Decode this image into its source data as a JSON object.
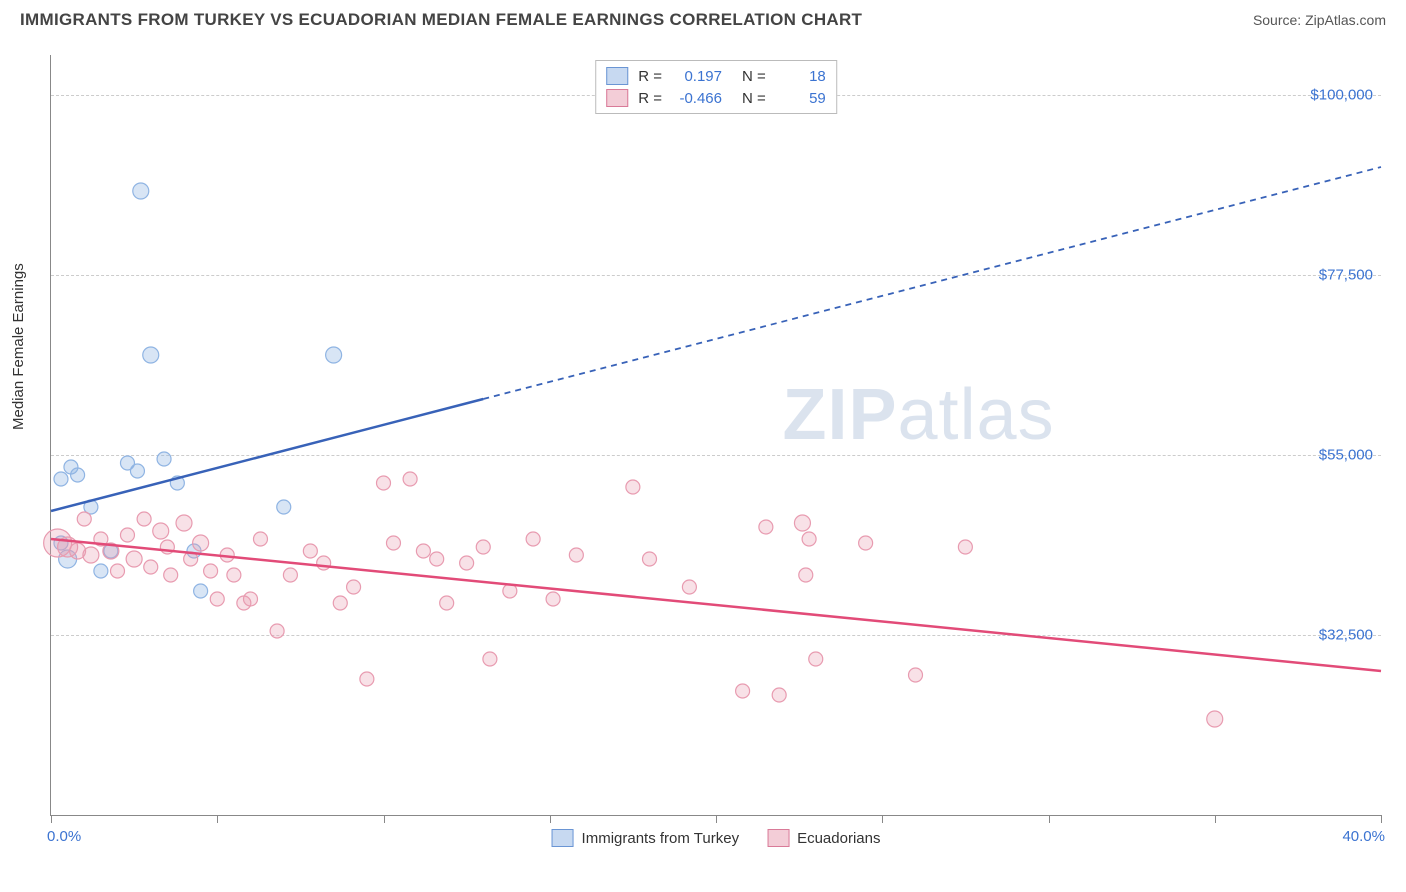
{
  "header": {
    "title": "IMMIGRANTS FROM TURKEY VS ECUADORIAN MEDIAN FEMALE EARNINGS CORRELATION CHART",
    "source_prefix": "Source: ",
    "source_name": "ZipAtlas.com"
  },
  "watermark": {
    "zip": "ZIP",
    "atlas": "atlas"
  },
  "chart": {
    "type": "scatter",
    "ylabel": "Median Female Earnings",
    "xlim": [
      0,
      40
    ],
    "ylim": [
      10000,
      105000
    ],
    "x_ticks_pct": [
      0,
      5,
      10,
      15,
      20,
      25,
      30,
      35,
      40
    ],
    "x_tick_labels": {
      "first": "0.0%",
      "last": "40.0%"
    },
    "y_gridlines": [
      32500,
      55000,
      77500,
      100000
    ],
    "y_tick_labels": [
      "$32,500",
      "$55,000",
      "$77,500",
      "$100,000"
    ],
    "grid_color": "#cccccc",
    "background_color": "#ffffff",
    "axis_color": "#888888",
    "label_fontsize": 15,
    "title_fontsize": 17,
    "tick_label_color": "#3b73d1",
    "series": [
      {
        "name": "Immigrants from Turkey",
        "marker_color": "#8fb4e3",
        "marker_fill": "rgba(143,180,227,0.35)",
        "line_color": "#3862b8",
        "line_width": 2.5,
        "r_value": "0.197",
        "n_value": "18",
        "trend_solid": {
          "x1": 0,
          "y1": 48000,
          "x2": 13,
          "y2": 62000
        },
        "trend_dashed": {
          "x1": 13,
          "y1": 62000,
          "x2": 40,
          "y2": 91000
        },
        "points": [
          {
            "x": 0.3,
            "y": 52000,
            "r": 7
          },
          {
            "x": 0.6,
            "y": 53500,
            "r": 7
          },
          {
            "x": 0.8,
            "y": 52500,
            "r": 7
          },
          {
            "x": 0.3,
            "y": 44000,
            "r": 7
          },
          {
            "x": 0.5,
            "y": 42000,
            "r": 9
          },
          {
            "x": 1.2,
            "y": 48500,
            "r": 7
          },
          {
            "x": 1.8,
            "y": 43000,
            "r": 7
          },
          {
            "x": 1.5,
            "y": 40500,
            "r": 7
          },
          {
            "x": 2.3,
            "y": 54000,
            "r": 7
          },
          {
            "x": 2.6,
            "y": 53000,
            "r": 7
          },
          {
            "x": 3.4,
            "y": 54500,
            "r": 7
          },
          {
            "x": 3.0,
            "y": 67500,
            "r": 8
          },
          {
            "x": 3.8,
            "y": 51500,
            "r": 7
          },
          {
            "x": 4.5,
            "y": 38000,
            "r": 7
          },
          {
            "x": 4.3,
            "y": 43000,
            "r": 7
          },
          {
            "x": 7.0,
            "y": 48500,
            "r": 7
          },
          {
            "x": 8.5,
            "y": 67500,
            "r": 8
          },
          {
            "x": 2.7,
            "y": 88000,
            "r": 8
          }
        ]
      },
      {
        "name": "Ecuadorians",
        "marker_color": "#e89bb0",
        "marker_fill": "rgba(232,155,176,0.30)",
        "line_color": "#e24b78",
        "line_width": 2.5,
        "r_value": "-0.466",
        "n_value": "59",
        "trend_solid": {
          "x1": 0,
          "y1": 44500,
          "x2": 40,
          "y2": 28000
        },
        "trend_dashed": null,
        "points": [
          {
            "x": 0.2,
            "y": 44000,
            "r": 14
          },
          {
            "x": 0.5,
            "y": 43500,
            "r": 10
          },
          {
            "x": 0.8,
            "y": 43000,
            "r": 8
          },
          {
            "x": 1.0,
            "y": 47000,
            "r": 7
          },
          {
            "x": 1.2,
            "y": 42500,
            "r": 8
          },
          {
            "x": 1.5,
            "y": 44500,
            "r": 7
          },
          {
            "x": 1.8,
            "y": 43000,
            "r": 8
          },
          {
            "x": 2.0,
            "y": 40500,
            "r": 7
          },
          {
            "x": 2.3,
            "y": 45000,
            "r": 7
          },
          {
            "x": 2.5,
            "y": 42000,
            "r": 8
          },
          {
            "x": 2.8,
            "y": 47000,
            "r": 7
          },
          {
            "x": 3.0,
            "y": 41000,
            "r": 7
          },
          {
            "x": 3.3,
            "y": 45500,
            "r": 8
          },
          {
            "x": 3.5,
            "y": 43500,
            "r": 7
          },
          {
            "x": 3.6,
            "y": 40000,
            "r": 7
          },
          {
            "x": 4.0,
            "y": 46500,
            "r": 8
          },
          {
            "x": 4.2,
            "y": 42000,
            "r": 7
          },
          {
            "x": 4.5,
            "y": 44000,
            "r": 8
          },
          {
            "x": 4.8,
            "y": 40500,
            "r": 7
          },
          {
            "x": 5.0,
            "y": 37000,
            "r": 7
          },
          {
            "x": 5.3,
            "y": 42500,
            "r": 7
          },
          {
            "x": 5.5,
            "y": 40000,
            "r": 7
          },
          {
            "x": 5.8,
            "y": 36500,
            "r": 7
          },
          {
            "x": 6.0,
            "y": 37000,
            "r": 7
          },
          {
            "x": 6.3,
            "y": 44500,
            "r": 7
          },
          {
            "x": 6.8,
            "y": 33000,
            "r": 7
          },
          {
            "x": 7.2,
            "y": 40000,
            "r": 7
          },
          {
            "x": 7.8,
            "y": 43000,
            "r": 7
          },
          {
            "x": 8.2,
            "y": 41500,
            "r": 7
          },
          {
            "x": 8.7,
            "y": 36500,
            "r": 7
          },
          {
            "x": 9.1,
            "y": 38500,
            "r": 7
          },
          {
            "x": 9.5,
            "y": 27000,
            "r": 7
          },
          {
            "x": 10.0,
            "y": 51500,
            "r": 7
          },
          {
            "x": 10.3,
            "y": 44000,
            "r": 7
          },
          {
            "x": 10.8,
            "y": 52000,
            "r": 7
          },
          {
            "x": 11.2,
            "y": 43000,
            "r": 7
          },
          {
            "x": 11.6,
            "y": 42000,
            "r": 7
          },
          {
            "x": 11.9,
            "y": 36500,
            "r": 7
          },
          {
            "x": 12.5,
            "y": 41500,
            "r": 7
          },
          {
            "x": 13.0,
            "y": 43500,
            "r": 7
          },
          {
            "x": 13.2,
            "y": 29500,
            "r": 7
          },
          {
            "x": 13.8,
            "y": 38000,
            "r": 7
          },
          {
            "x": 14.5,
            "y": 44500,
            "r": 7
          },
          {
            "x": 15.1,
            "y": 37000,
            "r": 7
          },
          {
            "x": 15.8,
            "y": 42500,
            "r": 7
          },
          {
            "x": 17.5,
            "y": 51000,
            "r": 7
          },
          {
            "x": 18.0,
            "y": 42000,
            "r": 7
          },
          {
            "x": 19.2,
            "y": 38500,
            "r": 7
          },
          {
            "x": 20.8,
            "y": 25500,
            "r": 7
          },
          {
            "x": 21.5,
            "y": 46000,
            "r": 7
          },
          {
            "x": 21.9,
            "y": 25000,
            "r": 7
          },
          {
            "x": 22.6,
            "y": 46500,
            "r": 8
          },
          {
            "x": 22.8,
            "y": 44500,
            "r": 7
          },
          {
            "x": 22.7,
            "y": 40000,
            "r": 7
          },
          {
            "x": 23.0,
            "y": 29500,
            "r": 7
          },
          {
            "x": 24.5,
            "y": 44000,
            "r": 7
          },
          {
            "x": 26.0,
            "y": 27500,
            "r": 7
          },
          {
            "x": 27.5,
            "y": 43500,
            "r": 7
          },
          {
            "x": 35.0,
            "y": 22000,
            "r": 8
          }
        ]
      }
    ]
  },
  "legend_top": {
    "r_label": "R =",
    "n_label": "N ="
  },
  "legend_bottom": [
    {
      "label": "Immigrants from Turkey",
      "fill": "rgba(143,180,227,0.5)",
      "border": "#6a95d4"
    },
    {
      "label": "Ecuadorians",
      "fill": "rgba(232,155,176,0.5)",
      "border": "#d97a98"
    }
  ]
}
